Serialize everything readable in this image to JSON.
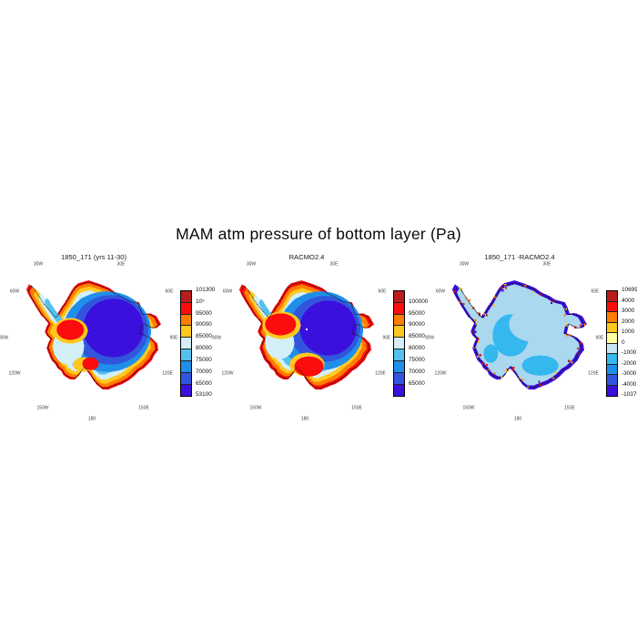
{
  "title": "MAM atm pressure of bottom layer (Pa)",
  "units": "Pa",
  "lon_labels": [
    "30W",
    "30E",
    "60W",
    "60E",
    "90W",
    "90E",
    "120W",
    "120E",
    "150W",
    "150E",
    "180"
  ],
  "palette": {
    "dark_red": "#b91c1c",
    "red": "#fc0d0d",
    "orange": "#ff7d00",
    "gold": "#ffc81e",
    "pale_yellow": "#ffffa0",
    "pale_blue": "#d4eff8",
    "light_blue": "#54c0ee",
    "mid_blue": "#1f8fea",
    "blue": "#3156dd",
    "indigo": "#3b10dc",
    "diff_pale": "#a9d8ef",
    "diff_cyan": "#35b8ee",
    "coastline": "#111111",
    "pole_dot": "#ffffff"
  },
  "panels": [
    {
      "title": "1850_171 (yrs 11-30)",
      "colorbar": {
        "label_mode": "edges",
        "labels": [
          "101300",
          "10⁵",
          "95000",
          "90000",
          "85000",
          "80000",
          "75000",
          "70000",
          "65000",
          "53100"
        ],
        "colors": [
          "#b91c1c",
          "#fc0d0d",
          "#ff7d00",
          "#ffc81e",
          "#d4eff8",
          "#54c0ee",
          "#1f8fea",
          "#3156dd",
          "#3b10dc"
        ]
      }
    },
    {
      "title": "RACMO2.4",
      "colorbar": {
        "label_mode": "internal",
        "labels": [
          "100000",
          "95000",
          "90000",
          "85000",
          "80000",
          "75000",
          "70000",
          "65000"
        ],
        "colors": [
          "#b91c1c",
          "#fc0d0d",
          "#ff7d00",
          "#ffc81e",
          "#d4eff8",
          "#54c0ee",
          "#1f8fea",
          "#3156dd",
          "#3b10dc"
        ]
      }
    },
    {
      "title": "1850_171 -RACMO2.4",
      "colorbar": {
        "label_mode": "edges",
        "labels": [
          "10699",
          "4000",
          "3000",
          "2000",
          "1000",
          "0",
          "-1000",
          "-2000",
          "-3000",
          "-4000",
          "-10379"
        ],
        "colors": [
          "#b91c1c",
          "#fc0d0d",
          "#ff7d00",
          "#ffc81e",
          "#ffffa0",
          "#c8e7f4",
          "#35b8ee",
          "#1f8fea",
          "#3156dd",
          "#3b10dc"
        ]
      }
    }
  ],
  "chart_data": [
    {
      "type": "heatmap",
      "title": "1850_171 (yrs 11-30)",
      "region": "Antarctica, south polar stereographic view",
      "variable": "MAM atm pressure of bottom layer",
      "units": "Pa",
      "level_boundaries": [
        53100,
        65000,
        70000,
        75000,
        80000,
        85000,
        90000,
        95000,
        100000,
        101300
      ],
      "level_colors_low_to_high": [
        "#3b10dc",
        "#3156dd",
        "#1f8fea",
        "#54c0ee",
        "#d4eff8",
        "#ffc81e",
        "#ff7d00",
        "#fc0d0d",
        "#b91c1c"
      ],
      "ring_labels": [
        "30W",
        "30E",
        "60W",
        "60E",
        "90W",
        "90E",
        "120W",
        "120E",
        "150W",
        "150E",
        "180"
      ],
      "pattern": "high pressure (red/orange) along coast and ice shelves, lowest (dark blue/violet) over East Antarctic plateau"
    },
    {
      "type": "heatmap",
      "title": "RACMO2.4",
      "region": "Antarctica, south polar stereographic view",
      "variable": "MAM atm pressure of bottom layer",
      "units": "Pa",
      "level_boundaries": [
        65000,
        70000,
        75000,
        80000,
        85000,
        90000,
        95000,
        100000
      ],
      "level_colors_low_to_high": [
        "#3b10dc",
        "#3156dd",
        "#1f8fea",
        "#54c0ee",
        "#d4eff8",
        "#ffc81e",
        "#ff7d00",
        "#fc0d0d",
        "#b91c1c"
      ],
      "ring_labels": [
        "30W",
        "30E",
        "60W",
        "60E",
        "90W",
        "90E",
        "120W",
        "120E",
        "150W",
        "150E",
        "180"
      ],
      "pattern": "same field from RACMO2.4; broader red coastal band and red Ross/Ronne ice-shelf areas, violet plateau minimum"
    },
    {
      "type": "heatmap",
      "title": "1850_171 -RACMO2.4",
      "region": "Antarctica, south polar stereographic view",
      "variable": "difference of MAM bottom-layer atm pressure",
      "units": "Pa",
      "value_range": [
        -10379,
        10699
      ],
      "level_boundaries": [
        -10379,
        -4000,
        -3000,
        -2000,
        -1000,
        0,
        1000,
        2000,
        3000,
        4000,
        10699
      ],
      "level_colors_low_to_high": [
        "#3b10dc",
        "#3156dd",
        "#1f8fea",
        "#35b8ee",
        "#c8e7f4",
        "#ffffa0",
        "#ffc81e",
        "#ff7d00",
        "#fc0d0d",
        "#b91c1c"
      ],
      "ring_labels": [
        "30W",
        "30E",
        "60W",
        "60E",
        "90W",
        "90E",
        "120W",
        "120E",
        "150W",
        "150E",
        "180"
      ],
      "pattern": "interior mostly small negative differences (pale/light blue); coastal ring of large negative (dark blue) mixed with large positive (yellow/orange/red) speckles"
    }
  ]
}
